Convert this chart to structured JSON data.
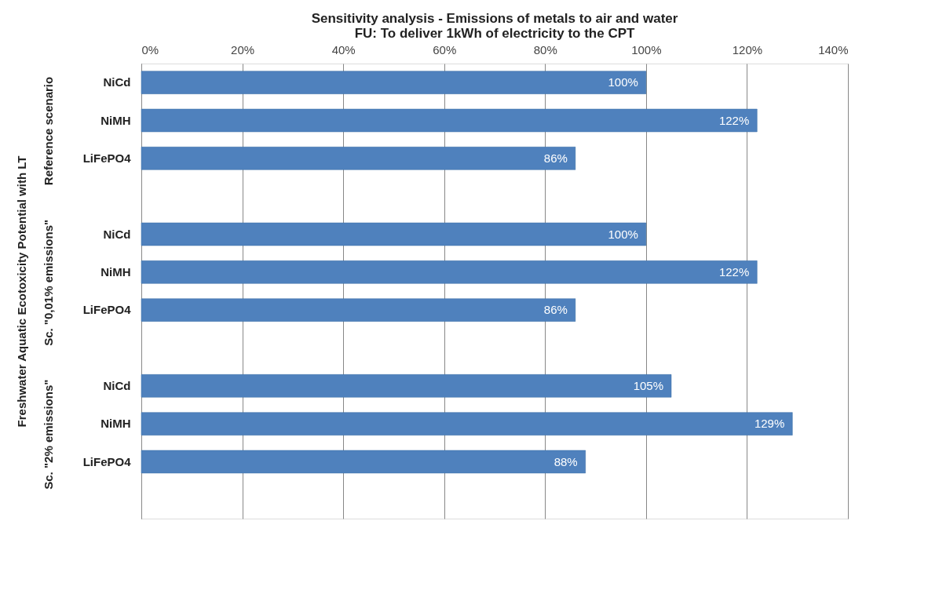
{
  "chart_data": {
    "type": "bar",
    "orientation": "horizontal",
    "title": [
      "Sensitivity analysis - Emissions of metals to air and water",
      "FU: To deliver 1kWh of electricity to the CPT"
    ],
    "ylabel": "Freshwater Aquatic Ecotoxicity Potential with LT",
    "categories": [
      "NiCd",
      "NiMH",
      "LiFePO4",
      null,
      "NiCd",
      "NiMH",
      "LiFePO4",
      null,
      "NiCd",
      "NiMH",
      "LiFePO4",
      null
    ],
    "values": [
      100,
      122,
      86,
      null,
      100,
      122,
      86,
      null,
      105,
      129,
      88,
      null
    ],
    "value_labels": [
      "100%",
      "122%",
      "86%",
      null,
      "100%",
      "122%",
      "86%",
      null,
      "105%",
      "129%",
      "88%",
      null
    ],
    "color": "#4f81bd",
    "annotations": [
      "Reference scenario",
      "Sc. \"0,01% emissions\"",
      "Sc. \"2% emissions\""
    ],
    "xlim": [
      0,
      140
    ],
    "xticks": [
      {
        "value": 0,
        "label": "0%"
      },
      {
        "value": 20,
        "label": "20%"
      },
      {
        "value": 40,
        "label": "40%"
      },
      {
        "value": 60,
        "label": "60%"
      },
      {
        "value": 80,
        "label": "80%"
      },
      {
        "value": 100,
        "label": "100%"
      },
      {
        "value": 120,
        "label": "120%"
      },
      {
        "value": 140,
        "label": "140%"
      }
    ],
    "grid": "x"
  }
}
